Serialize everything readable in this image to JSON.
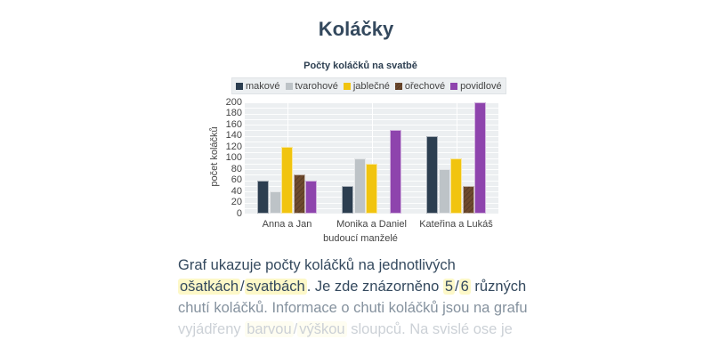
{
  "page": {
    "title": "Koláčky"
  },
  "chart": {
    "title": "Počty koláčků na svatbě",
    "ylabel": "počet koláčků",
    "xlabel": "budoucí manželé",
    "yticks": [
      "200",
      "180",
      "160",
      "140",
      "120",
      "100",
      "80",
      "60",
      "40",
      "20",
      "0"
    ],
    "legend": [
      {
        "label": "makové",
        "color": "#2c3e50"
      },
      {
        "label": "tvarohové",
        "color": "#bdc3c7"
      },
      {
        "label": "jablečné",
        "color": "#f1c40f"
      },
      {
        "label": "ořechové",
        "color": "#6e4a2e"
      },
      {
        "label": "povidlové",
        "color": "#8e44ad"
      }
    ],
    "categories": [
      "Anna a Jan",
      "Monika a Daniel",
      "Kateřina a Lukáš"
    ]
  },
  "chart_data": {
    "type": "bar",
    "title": "Počty koláčků na svatbě",
    "xlabel": "budoucí manželé",
    "ylabel": "počet koláčků",
    "ylim": [
      0,
      200
    ],
    "grid": true,
    "legend_position": "top",
    "categories": [
      "Anna a Jan",
      "Monika a Daniel",
      "Kateřina a Lukáš"
    ],
    "series": [
      {
        "name": "makové",
        "color": "#2c3e50",
        "values": [
          60,
          50,
          140
        ]
      },
      {
        "name": "tvarohové",
        "color": "#bdc3c7",
        "values": [
          40,
          100,
          80
        ]
      },
      {
        "name": "jablečné",
        "color": "#f1c40f",
        "values": [
          120,
          90,
          100
        ]
      },
      {
        "name": "ořechové",
        "color": "#6e4a2e",
        "values": [
          70,
          0,
          50
        ]
      },
      {
        "name": "povidlové",
        "color": "#8e44ad",
        "values": [
          60,
          150,
          200
        ]
      }
    ]
  },
  "description": {
    "line1": "Graf ukazuje počty koláčků na jednotlivých",
    "line2_opt_a": "ošatkách",
    "line2_sep1": "/",
    "line2_opt_b": "svatbách",
    "line2_mid": ". Je zde znázorněno ",
    "line2_num_a": "5",
    "line2_sep2": "/",
    "line2_num_b": "6",
    "line2_end": " různých",
    "line3": "chutí koláčků. Informace o chuti koláčků jsou na grafu",
    "line4_start": "vyjádřeny ",
    "line4_opt_a": "barvou",
    "line4_sep": "/",
    "line4_opt_b": "výškou",
    "line4_end": " sloupců. Na svislé ose je"
  }
}
